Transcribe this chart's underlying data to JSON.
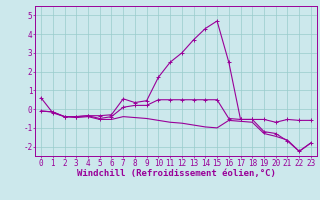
{
  "x": [
    0,
    1,
    2,
    3,
    4,
    5,
    6,
    7,
    8,
    9,
    10,
    11,
    12,
    13,
    14,
    15,
    16,
    17,
    18,
    19,
    20,
    21,
    22,
    23
  ],
  "line1": [
    0.6,
    -0.2,
    -0.4,
    -0.4,
    -0.35,
    -0.35,
    -0.3,
    0.55,
    0.35,
    0.45,
    1.7,
    2.5,
    3.0,
    3.7,
    4.3,
    4.7,
    2.5,
    -0.55,
    -0.55,
    -1.2,
    -1.3,
    -1.7,
    -2.25,
    -1.8
  ],
  "line2": [
    -0.1,
    -0.15,
    -0.4,
    -0.4,
    -0.35,
    -0.5,
    -0.4,
    0.1,
    0.2,
    0.2,
    0.5,
    0.5,
    0.5,
    0.5,
    0.5,
    0.5,
    -0.5,
    -0.55,
    -0.55,
    -0.55,
    -0.7,
    -0.55,
    -0.6,
    -0.6
  ],
  "line3": [
    -0.1,
    -0.15,
    -0.4,
    -0.45,
    -0.4,
    -0.55,
    -0.55,
    -0.4,
    -0.45,
    -0.5,
    -0.6,
    -0.7,
    -0.75,
    -0.85,
    -0.95,
    -1.0,
    -0.6,
    -0.65,
    -0.7,
    -1.3,
    -1.45,
    -1.65,
    -2.25,
    -1.8
  ],
  "bg_color": "#cce8ec",
  "line_color": "#990099",
  "grid_color": "#99cccc",
  "ylim": [
    -2.5,
    5.5
  ],
  "xlim": [
    -0.5,
    23.5
  ],
  "xlabel": "Windchill (Refroidissement éolien,°C)",
  "tick_fontsize": 5.5,
  "label_fontsize": 6.5,
  "yticks": [
    -2,
    -1,
    0,
    1,
    2,
    3,
    4,
    5
  ]
}
